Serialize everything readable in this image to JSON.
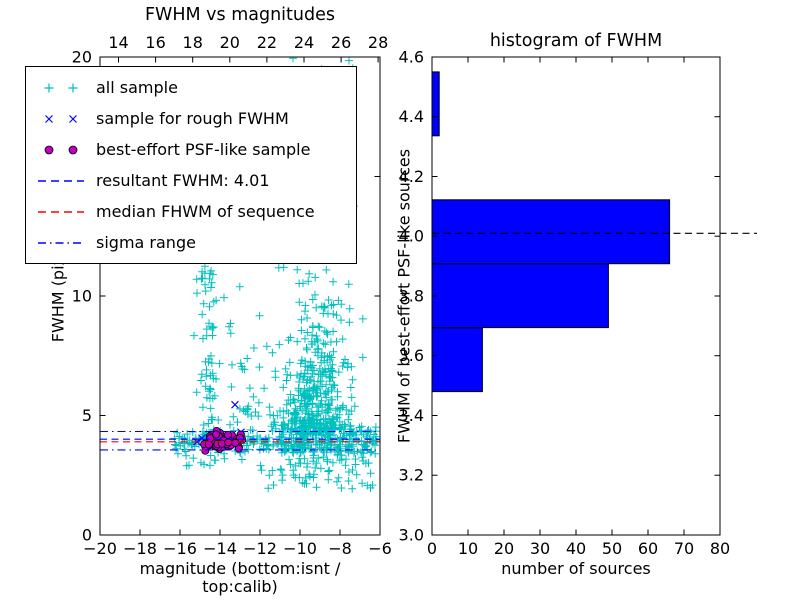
{
  "chart_data": [
    {
      "type": "scatter",
      "title": "FWHM vs magnitudes",
      "xlabel": "magnitude (bottom:isnt / top:calib)",
      "ylabel": "FWHM (pix)",
      "xlim": [
        -20,
        -6
      ],
      "ylim": [
        0,
        20
      ],
      "top_xlim": [
        13.0,
        28.1
      ],
      "x_ticks": [
        -20,
        -18,
        -16,
        -14,
        -12,
        -10,
        -8,
        -6
      ],
      "top_x_ticks": [
        14,
        16,
        18,
        20,
        22,
        24,
        26,
        28
      ],
      "y_ticks": [
        0,
        5,
        10,
        15,
        20
      ],
      "legend": [
        {
          "label": "all sample",
          "marker": "plus",
          "color": "#00bfbf"
        },
        {
          "label": "sample for rough FWHM",
          "marker": "cross",
          "color": "#0000ff"
        },
        {
          "label": "best-effort PSF-like sample",
          "marker": "circle",
          "color": "#c000c0",
          "edge": "#000000"
        },
        {
          "label": "resultant FWHM: 4.01",
          "marker": "dashed-line",
          "color": "#0000ff"
        },
        {
          "label": "median FHWM of sequence",
          "marker": "dashed-line",
          "color": "#ff0000"
        },
        {
          "label": "sigma range",
          "marker": "dashdot-line",
          "color": "#0000ff"
        }
      ],
      "ref_lines": {
        "resultant_fwhm": {
          "y": 4.01,
          "color": "#0000ff",
          "style": "dashed"
        },
        "median_fwhm": {
          "y": 3.9,
          "color": "#ff0000",
          "style": "dashed"
        },
        "sigma_range": {
          "y_low": 3.56,
          "y_high": 4.33,
          "color": "#0000ff",
          "style": "dashdot"
        }
      },
      "seed": 42,
      "series": [
        {
          "name": "all sample",
          "marker": "plus",
          "color": "#00bfbf",
          "clusters": [
            {
              "n": 120,
              "x": {
                "t": "u",
                "min": -16.3,
                "max": -11.0
              },
              "y": {
                "t": "g",
                "mu": 3.9,
                "sd": 0.22
              }
            },
            {
              "n": 240,
              "x": {
                "t": "u",
                "min": -11.0,
                "max": -6.15
              },
              "y": {
                "t": "g",
                "mu": 3.9,
                "sd": 0.38
              }
            },
            {
              "n": 430,
              "x": {
                "t": "g",
                "mu": -9.3,
                "sd": 0.85,
                "min": -11.5,
                "max": -6.2
              },
              "y": {
                "t": "e",
                "min": 4.2,
                "scale": 2.4,
                "max": 14.0
              }
            },
            {
              "n": 70,
              "x": {
                "t": "g",
                "mu": -14.55,
                "sd": 0.28,
                "min": -15.3,
                "max": -13.8
              },
              "y": {
                "t": "u",
                "min": 4.2,
                "max": 12.0
              }
            },
            {
              "n": 55,
              "x": {
                "t": "g",
                "mu": -9.2,
                "sd": 1.1,
                "min": -12.0,
                "max": -6.3
              },
              "y": {
                "t": "u",
                "min": 12.0,
                "max": 19.6
              }
            },
            {
              "n": 60,
              "x": {
                "t": "u",
                "min": -12.0,
                "max": -6.2
              },
              "y": {
                "t": "u",
                "min": 1.9,
                "max": 3.2
              }
            },
            {
              "n": 15,
              "x": {
                "t": "u",
                "min": -16.2,
                "max": -12.2
              },
              "y": {
                "t": "u",
                "min": 2.7,
                "max": 3.5
              }
            },
            {
              "n": 40,
              "x": {
                "t": "u",
                "min": -13.6,
                "max": -11.2
              },
              "y": {
                "t": "e",
                "min": 4.3,
                "scale": 1.8,
                "max": 11.5
              }
            }
          ],
          "points": [
            [
              -10.35,
              19.95
            ],
            [
              -7.55,
              19.85
            ],
            [
              -8.65,
              19.2
            ],
            [
              -15.05,
              11.85
            ],
            [
              -14.75,
              11.75
            ],
            [
              -13.0,
              12.1
            ]
          ]
        },
        {
          "name": "sample for rough FWHM",
          "marker": "cross",
          "color": "#0000ff",
          "points": [
            [
              -13.25,
              5.45
            ],
            [
              -12.95,
              4.3
            ],
            [
              -14.9,
              4.05
            ],
            [
              -14.45,
              3.8
            ],
            [
              -14.05,
              4.15
            ],
            [
              -13.6,
              3.95
            ],
            [
              -15.15,
              3.9
            ],
            [
              -13.35,
              4.05
            ]
          ]
        },
        {
          "name": "best-effort PSF-like sample",
          "marker": "circle",
          "color": "#c000c0",
          "edge": "#000000",
          "clusters": [
            {
              "n": 55,
              "x": {
                "t": "g",
                "mu": -14.0,
                "sd": 0.55,
                "min": -15.3,
                "max": -12.75
              },
              "y": {
                "t": "g",
                "mu": 3.93,
                "sd": 0.17,
                "min": 3.5,
                "max": 4.35
              }
            }
          ]
        }
      ]
    },
    {
      "type": "histogram-horizontal",
      "title": "histogram of FWHM",
      "xlabel": "number of sources",
      "ylabel": "FWHM of best-effort PSF-like sources",
      "xlim": [
        0,
        80
      ],
      "ylim": [
        3.0,
        4.6
      ],
      "x_ticks": [
        0,
        10,
        20,
        30,
        40,
        50,
        60,
        70,
        80
      ],
      "y_tick_labels": [
        "3.0",
        "3.2",
        "3.4",
        "3.6",
        "3.8",
        "4.0",
        "4.2",
        "4.4",
        "4.6"
      ],
      "bin_edges": [
        3.48,
        3.694,
        3.908,
        4.122,
        4.336,
        4.55
      ],
      "counts": [
        14,
        49,
        66,
        0,
        2
      ],
      "bar_color": "#0000ff",
      "bar_edge": "#000000",
      "dashed_line": {
        "y": 4.01,
        "color": "#000000",
        "style": "dashed"
      }
    }
  ]
}
